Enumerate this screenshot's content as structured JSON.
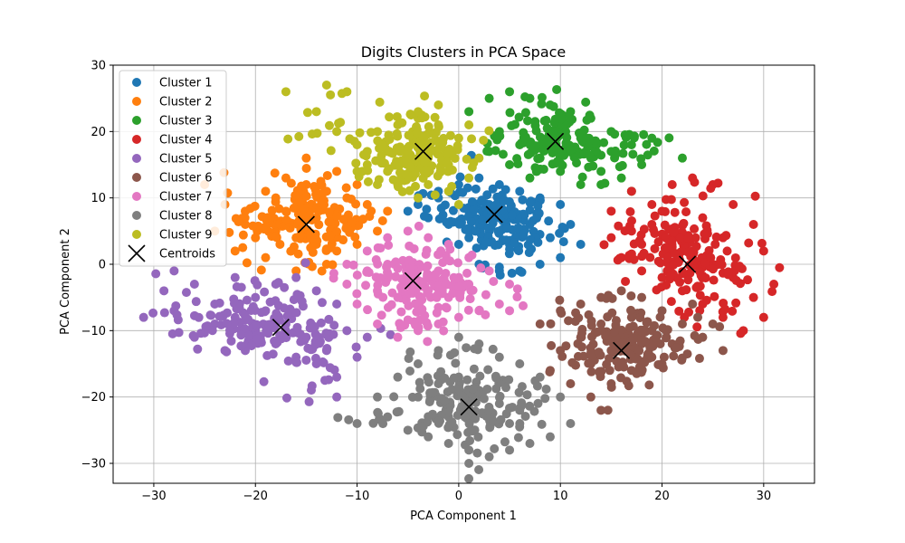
{
  "chart_data": {
    "type": "scatter",
    "title": "Digits Clusters in PCA Space",
    "xlabel": "PCA Component 1",
    "ylabel": "PCA Component 2",
    "xlim": [
      -34,
      35
    ],
    "ylim": [
      -33,
      30
    ],
    "xticks": [
      -30,
      -20,
      -10,
      0,
      10,
      20,
      30
    ],
    "yticks": [
      -30,
      -20,
      -10,
      0,
      10,
      20,
      30
    ],
    "grid": true,
    "legend_position": "upper-left",
    "series": [
      {
        "name": "Cluster 1",
        "color": "#1f77b4",
        "count": 200,
        "points": [
          [
            -4,
            9
          ],
          [
            -2,
            11
          ],
          [
            0,
            12
          ],
          [
            2,
            13
          ],
          [
            4,
            12
          ],
          [
            6,
            11
          ],
          [
            8,
            10
          ],
          [
            10,
            9
          ],
          [
            11,
            6
          ],
          [
            12,
            3
          ],
          [
            10,
            1
          ],
          [
            8,
            0
          ],
          [
            6,
            -1
          ],
          [
            4,
            -1
          ],
          [
            2,
            0
          ],
          [
            0,
            3
          ],
          [
            -1,
            6
          ],
          [
            1,
            8
          ],
          [
            3,
            9
          ],
          [
            5,
            8
          ],
          [
            7,
            6
          ],
          [
            9,
            4
          ],
          [
            5,
            3
          ],
          [
            3,
            5
          ],
          [
            1,
            4
          ],
          [
            -3,
            7
          ],
          [
            -5,
            8
          ],
          [
            6,
            5
          ],
          [
            4,
            7
          ],
          [
            2,
            6
          ]
        ],
        "centroid": [
          3.5,
          7.5
        ]
      },
      {
        "name": "Cluster 2",
        "color": "#ff7f0e",
        "count": 200,
        "points": [
          [
            -25,
            12
          ],
          [
            -23,
            9
          ],
          [
            -21,
            8
          ],
          [
            -19,
            11
          ],
          [
            -17,
            13
          ],
          [
            -15,
            12
          ],
          [
            -13,
            11
          ],
          [
            -11,
            10
          ],
          [
            -9,
            9
          ],
          [
            -7,
            8
          ],
          [
            -8,
            5
          ],
          [
            -10,
            3
          ],
          [
            -12,
            2
          ],
          [
            -14,
            3
          ],
          [
            -16,
            4
          ],
          [
            -18,
            5
          ],
          [
            -20,
            4
          ],
          [
            -22,
            2
          ],
          [
            -24,
            5
          ],
          [
            -19,
            1
          ],
          [
            -16,
            -1
          ],
          [
            -13,
            0
          ],
          [
            -11,
            6
          ],
          [
            -14,
            7
          ],
          [
            -17,
            8
          ],
          [
            -12,
            14
          ],
          [
            -15,
            16
          ],
          [
            -18,
            10
          ],
          [
            -21,
            6
          ],
          [
            -10,
            12
          ]
        ],
        "centroid": [
          -15,
          6
        ]
      },
      {
        "name": "Cluster 3",
        "color": "#2ca02c",
        "count": 200,
        "points": [
          [
            1,
            23
          ],
          [
            3,
            25
          ],
          [
            5,
            26
          ],
          [
            7,
            25
          ],
          [
            9,
            24
          ],
          [
            11,
            23
          ],
          [
            13,
            22
          ],
          [
            15,
            20
          ],
          [
            17,
            18
          ],
          [
            19,
            19
          ],
          [
            18,
            15
          ],
          [
            16,
            13
          ],
          [
            14,
            12
          ],
          [
            12,
            12
          ],
          [
            10,
            14
          ],
          [
            8,
            16
          ],
          [
            6,
            18
          ],
          [
            4,
            20
          ],
          [
            3,
            17
          ],
          [
            5,
            15
          ],
          [
            7,
            13
          ],
          [
            9,
            19
          ],
          [
            11,
            17
          ],
          [
            13,
            16
          ],
          [
            15,
            17
          ],
          [
            10,
            21
          ],
          [
            12,
            19
          ],
          [
            14,
            14
          ],
          [
            17,
            11
          ],
          [
            22,
            16
          ]
        ],
        "centroid": [
          9.5,
          18.5
        ]
      },
      {
        "name": "Cluster 4",
        "color": "#d62728",
        "count": 200,
        "points": [
          [
            15,
            8
          ],
          [
            17,
            11
          ],
          [
            19,
            9
          ],
          [
            21,
            12
          ],
          [
            23,
            13
          ],
          [
            25,
            12
          ],
          [
            27,
            9
          ],
          [
            29,
            6
          ],
          [
            30,
            2
          ],
          [
            31,
            -3
          ],
          [
            30,
            -8
          ],
          [
            28,
            -10
          ],
          [
            26,
            -8
          ],
          [
            24,
            -6
          ],
          [
            22,
            -4
          ],
          [
            20,
            -2
          ],
          [
            18,
            -1
          ],
          [
            16,
            1
          ],
          [
            15,
            4
          ],
          [
            17,
            5
          ],
          [
            19,
            6
          ],
          [
            21,
            4
          ],
          [
            23,
            2
          ],
          [
            25,
            0
          ],
          [
            27,
            -2
          ],
          [
            29,
            -5
          ],
          [
            26,
            4
          ],
          [
            24,
            7
          ],
          [
            20,
            8
          ],
          [
            18,
            3
          ]
        ],
        "centroid": [
          22.5,
          0
        ]
      },
      {
        "name": "Cluster 5",
        "color": "#9467bd",
        "count": 200,
        "points": [
          [
            -31,
            -8
          ],
          [
            -29,
            -4
          ],
          [
            -28,
            -1
          ],
          [
            -26,
            -3
          ],
          [
            -24,
            -6
          ],
          [
            -22,
            -8
          ],
          [
            -20,
            -10
          ],
          [
            -18,
            -12
          ],
          [
            -16,
            -14
          ],
          [
            -14,
            -15
          ],
          [
            -12,
            -17
          ],
          [
            -10,
            -14
          ],
          [
            -11,
            -10
          ],
          [
            -12,
            -6
          ],
          [
            -14,
            -4
          ],
          [
            -16,
            -2
          ],
          [
            -18,
            -3
          ],
          [
            -20,
            -5
          ],
          [
            -22,
            -2
          ],
          [
            -24,
            -9
          ],
          [
            -26,
            -11
          ],
          [
            -28,
            -7
          ],
          [
            -19,
            -7
          ],
          [
            -17,
            -9
          ],
          [
            -15,
            -11
          ],
          [
            -13,
            -13
          ],
          [
            -21,
            -13
          ],
          [
            -23,
            -13
          ],
          [
            -12,
            -20
          ],
          [
            -9,
            -11
          ]
        ],
        "centroid": [
          -17.5,
          -9.5
        ]
      },
      {
        "name": "Cluster 6",
        "color": "#8c564b",
        "count": 200,
        "points": [
          [
            8,
            -9
          ],
          [
            10,
            -7
          ],
          [
            12,
            -6
          ],
          [
            14,
            -5
          ],
          [
            16,
            -4
          ],
          [
            18,
            -5
          ],
          [
            20,
            -7
          ],
          [
            22,
            -9
          ],
          [
            24,
            -11
          ],
          [
            26,
            -13
          ],
          [
            25,
            -9
          ],
          [
            23,
            -6
          ],
          [
            21,
            -12
          ],
          [
            19,
            -14
          ],
          [
            17,
            -16
          ],
          [
            15,
            -18
          ],
          [
            13,
            -20
          ],
          [
            11,
            -18
          ],
          [
            9,
            -16
          ],
          [
            10,
            -13
          ],
          [
            12,
            -11
          ],
          [
            14,
            -9
          ],
          [
            16,
            -10
          ],
          [
            18,
            -12
          ],
          [
            20,
            -15
          ],
          [
            15,
            -13
          ],
          [
            13,
            -15
          ],
          [
            17,
            -8
          ],
          [
            19,
            -10
          ],
          [
            14,
            -22
          ]
        ],
        "centroid": [
          16,
          -13
        ]
      },
      {
        "name": "Cluster 7",
        "color": "#e377c2",
        "count": 200,
        "points": [
          [
            -11,
            0
          ],
          [
            -9,
            2
          ],
          [
            -7,
            4
          ],
          [
            -5,
            5
          ],
          [
            -3,
            4
          ],
          [
            -1,
            3
          ],
          [
            1,
            1
          ],
          [
            3,
            -1
          ],
          [
            5,
            -3
          ],
          [
            4,
            -6
          ],
          [
            2,
            -7
          ],
          [
            0,
            -8
          ],
          [
            -2,
            -9
          ],
          [
            -4,
            -10
          ],
          [
            -6,
            -11
          ],
          [
            -8,
            -9
          ],
          [
            -10,
            -6
          ],
          [
            -11,
            -3
          ],
          [
            -9,
            -1
          ],
          [
            -7,
            0
          ],
          [
            -5,
            -2
          ],
          [
            -3,
            -4
          ],
          [
            -1,
            -5
          ],
          [
            1,
            -3
          ],
          [
            -6,
            -5
          ],
          [
            -8,
            -4
          ],
          [
            -4,
            -7
          ],
          [
            -2,
            -1
          ],
          [
            0,
            -2
          ],
          [
            5,
            -7
          ]
        ],
        "centroid": [
          -4.5,
          -2.5
        ]
      },
      {
        "name": "Cluster 8",
        "color": "#7f7f7f",
        "count": 200,
        "points": [
          [
            -10,
            -24
          ],
          [
            -8,
            -20
          ],
          [
            -6,
            -17
          ],
          [
            -4,
            -15
          ],
          [
            -2,
            -13
          ],
          [
            0,
            -11
          ],
          [
            2,
            -12
          ],
          [
            4,
            -14
          ],
          [
            6,
            -15
          ],
          [
            8,
            -17
          ],
          [
            10,
            -20
          ],
          [
            11,
            -24
          ],
          [
            9,
            -26
          ],
          [
            7,
            -27
          ],
          [
            5,
            -28
          ],
          [
            3,
            -29
          ],
          [
            1,
            -28
          ],
          [
            -1,
            -27
          ],
          [
            -3,
            -26
          ],
          [
            -5,
            -25
          ],
          [
            -7,
            -23
          ],
          [
            -4,
            -20
          ],
          [
            -2,
            -18
          ],
          [
            0,
            -17
          ],
          [
            2,
            -19
          ],
          [
            4,
            -21
          ],
          [
            6,
            -22
          ],
          [
            -1,
            -23
          ],
          [
            1,
            -30
          ],
          [
            5,
            -24
          ]
        ],
        "centroid": [
          1,
          -21.5
        ]
      },
      {
        "name": "Cluster 9",
        "color": "#bcbd22",
        "count": 200,
        "points": [
          [
            -17,
            26
          ],
          [
            -13,
            27
          ],
          [
            -11,
            26
          ],
          [
            -14,
            23
          ],
          [
            -12,
            20
          ],
          [
            -10,
            18
          ],
          [
            -9,
            15
          ],
          [
            -7,
            14
          ],
          [
            -5,
            13
          ],
          [
            -3,
            12
          ],
          [
            -1,
            11
          ],
          [
            1,
            13
          ],
          [
            2,
            16
          ],
          [
            0,
            19
          ],
          [
            -2,
            21
          ],
          [
            -4,
            22
          ],
          [
            -6,
            21
          ],
          [
            -8,
            20
          ],
          [
            -9,
            17
          ],
          [
            -7,
            17
          ],
          [
            -5,
            17
          ],
          [
            -3,
            16
          ],
          [
            -1,
            15
          ],
          [
            1,
            21
          ],
          [
            -2,
            24
          ],
          [
            -6,
            12
          ],
          [
            -8,
            12
          ],
          [
            -4,
            10
          ],
          [
            0,
            9
          ],
          [
            -10,
            14
          ]
        ],
        "centroid": [
          -3.5,
          17
        ]
      }
    ],
    "centroids_label": "Centroids",
    "centroid_color": "#000000"
  }
}
